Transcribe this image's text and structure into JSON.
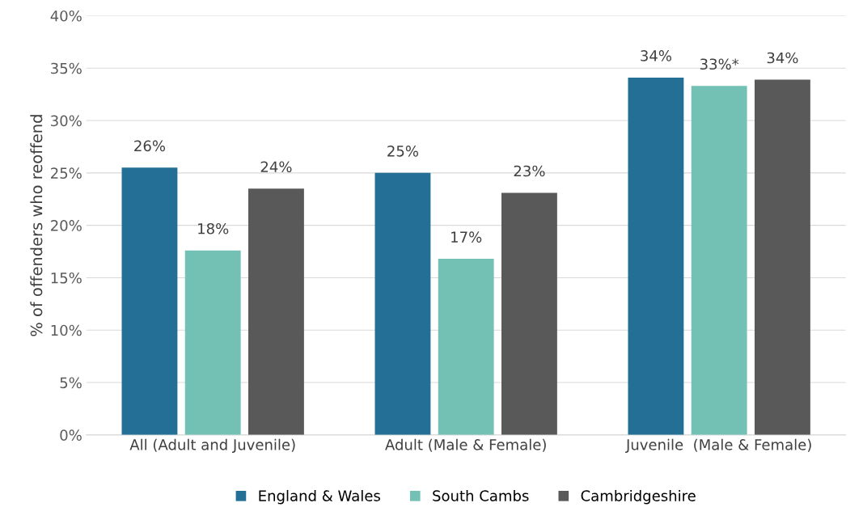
{
  "chart_data": {
    "type": "bar",
    "ylabel": "% of offenders who reoffend",
    "categories": [
      "All (Adult and Juvenile)",
      "Adult (Male & Female)",
      "Juvenile  (Male & Female)"
    ],
    "series": [
      {
        "name": "England & Wales",
        "color": "#236f95",
        "values": [
          25.5,
          25.0,
          34.1
        ],
        "value_labels": [
          "26%",
          "25%",
          "34%"
        ]
      },
      {
        "name": "South Cambs",
        "color": "#72c1b4",
        "values": [
          17.6,
          16.8,
          33.3
        ],
        "value_labels": [
          "18%",
          "17%",
          "33%*"
        ]
      },
      {
        "name": "Cambridgeshire",
        "color": "#595959",
        "values": [
          23.5,
          23.1,
          33.9
        ],
        "value_labels": [
          "24%",
          "23%",
          "34%"
        ]
      }
    ],
    "ylim": [
      0,
      40
    ],
    "yticks": [
      {
        "value": 0,
        "label": "0%"
      },
      {
        "value": 5,
        "label": "5%"
      },
      {
        "value": 10,
        "label": "10%"
      },
      {
        "value": 15,
        "label": "15%"
      },
      {
        "value": 20,
        "label": "20%"
      },
      {
        "value": 25,
        "label": "25%"
      },
      {
        "value": 30,
        "label": "30%"
      },
      {
        "value": 35,
        "label": "35%"
      },
      {
        "value": 40,
        "label": "40%"
      }
    ],
    "grid": "y",
    "legend": "bottom"
  }
}
